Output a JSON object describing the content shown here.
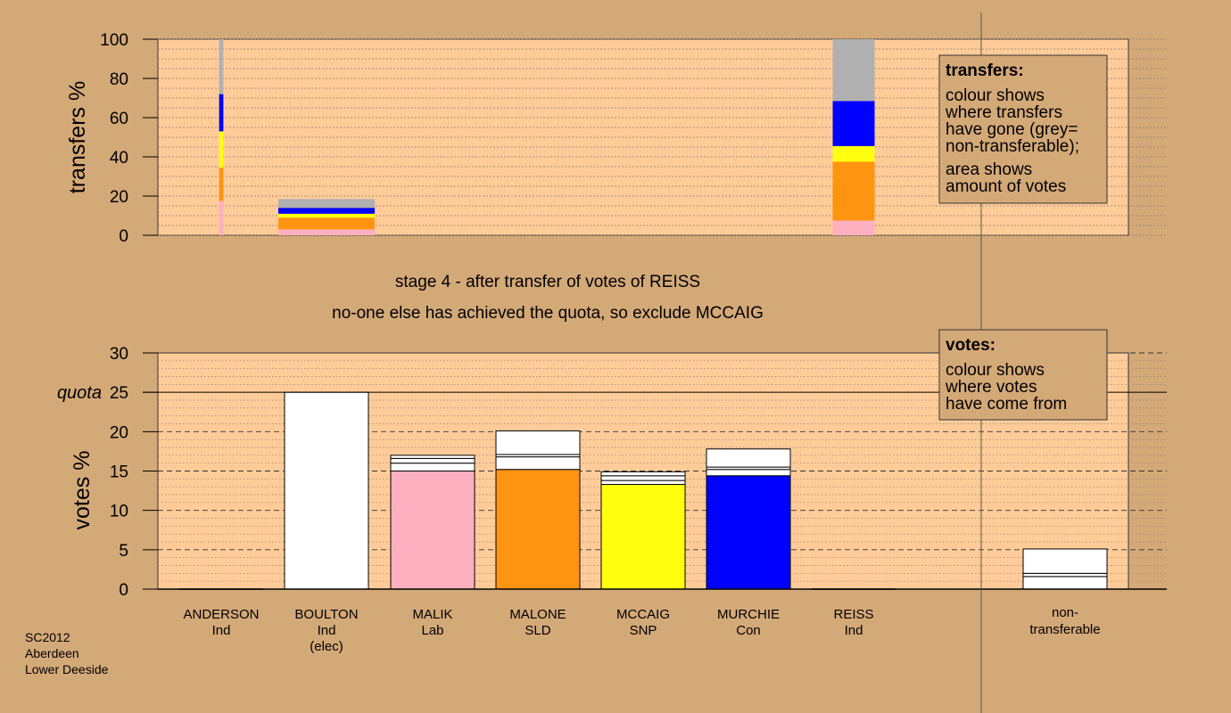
{
  "stage_text": "stage 4 - after transfer of votes of REISS",
  "stage_sub": "no-one else has achieved the quota, so exclude MCCAIG",
  "footer": [
    "SC2012",
    "Aberdeen",
    "Lower Deeside"
  ],
  "legend_transfers": {
    "title": "transfers:",
    "lines1": [
      "colour shows",
      "where transfers",
      "have gone (grey=",
      "non-transferable);"
    ],
    "lines2": [
      "area shows",
      "amount of votes"
    ]
  },
  "legend_votes": {
    "title": "votes:",
    "lines": [
      "colour shows",
      "where votes",
      "have come from"
    ]
  },
  "colors": {
    "background": "#d4a978",
    "plot_bg": "#ffcc99",
    "MALIK": "#ffb0c0",
    "MALONE": "#ff9410",
    "MCCAIG": "#ffff10",
    "MURCHIE": "#0000ff",
    "nontransferable": "#b0b0b0",
    "white": "#ffffff"
  },
  "chart_data": [
    {
      "type": "bar",
      "name": "transfers",
      "ylabel": "transfers %",
      "ylim": [
        0,
        100
      ],
      "yticks": [
        0,
        20,
        40,
        60,
        80,
        100
      ],
      "columns": [
        {
          "candidate": "ANDERSON",
          "width_share": 0.2,
          "segments": [
            {
              "to": "MALIK",
              "value": 17.5
            },
            {
              "to": "MALONE",
              "value": 17
            },
            {
              "to": "MCCAIG",
              "value": 18.5
            },
            {
              "to": "MURCHIE",
              "value": 19
            },
            {
              "to": "nontransferable",
              "value": 28
            }
          ]
        },
        {
          "candidate": "BOULTON",
          "width_share": 4.6,
          "segments": [
            {
              "to": "MALIK",
              "value": 3
            },
            {
              "to": "MALONE",
              "value": 6
            },
            {
              "to": "MCCAIG",
              "value": 2
            },
            {
              "to": "MURCHIE",
              "value": 3
            },
            {
              "to": "nontransferable",
              "value": 4.5
            }
          ]
        },
        {
          "candidate": "REISS",
          "width_share": 2.0,
          "segments": [
            {
              "to": "MALIK",
              "value": 7.5
            },
            {
              "to": "MALONE",
              "value": 30
            },
            {
              "to": "MCCAIG",
              "value": 8
            },
            {
              "to": "MURCHIE",
              "value": 23
            },
            {
              "to": "nontransferable",
              "value": 31.5
            }
          ]
        }
      ]
    },
    {
      "type": "bar",
      "name": "votes",
      "ylabel": "votes %",
      "ylim": [
        0,
        30
      ],
      "yticks": [
        0,
        5,
        10,
        15,
        20,
        25,
        30
      ],
      "quota_label": "quota",
      "quota": 25,
      "candidates": [
        {
          "name": "ANDERSON",
          "party": "Ind",
          "extra": "",
          "segments": []
        },
        {
          "name": "BOULTON",
          "party": "Ind",
          "extra": "(elec)",
          "segments": [
            {
              "color": "white",
              "value": 25
            }
          ]
        },
        {
          "name": "MALIK",
          "party": "Lab",
          "extra": "",
          "segments": [
            {
              "color": "MALIK",
              "value": 15
            },
            {
              "color": "white",
              "value": 1
            },
            {
              "color": "white",
              "value": 0.6
            },
            {
              "color": "white",
              "value": 0.4
            }
          ]
        },
        {
          "name": "MALONE",
          "party": "SLD",
          "extra": "",
          "segments": [
            {
              "color": "MALONE",
              "value": 15.2
            },
            {
              "color": "white",
              "value": 1.6
            },
            {
              "color": "white",
              "value": 0.3
            },
            {
              "color": "white",
              "value": 3
            }
          ]
        },
        {
          "name": "MCCAIG",
          "party": "SNP",
          "extra": "",
          "segments": [
            {
              "color": "MCCAIG",
              "value": 13.3
            },
            {
              "color": "white",
              "value": 0.5
            },
            {
              "color": "white",
              "value": 0.6
            },
            {
              "color": "white",
              "value": 0.5
            }
          ]
        },
        {
          "name": "MURCHIE",
          "party": "Con",
          "extra": "",
          "segments": [
            {
              "color": "MURCHIE",
              "value": 14.4
            },
            {
              "color": "white",
              "value": 0.8
            },
            {
              "color": "white",
              "value": 0.3
            },
            {
              "color": "white",
              "value": 2.3
            }
          ]
        },
        {
          "name": "REISS",
          "party": "Ind",
          "extra": "",
          "segments": []
        }
      ],
      "nontransferable": {
        "label1": "non-",
        "label2": "transferable",
        "segments": [
          {
            "color": "white",
            "value": 1.6
          },
          {
            "color": "white",
            "value": 0.4
          },
          {
            "color": "white",
            "value": 3.1
          }
        ]
      }
    }
  ]
}
